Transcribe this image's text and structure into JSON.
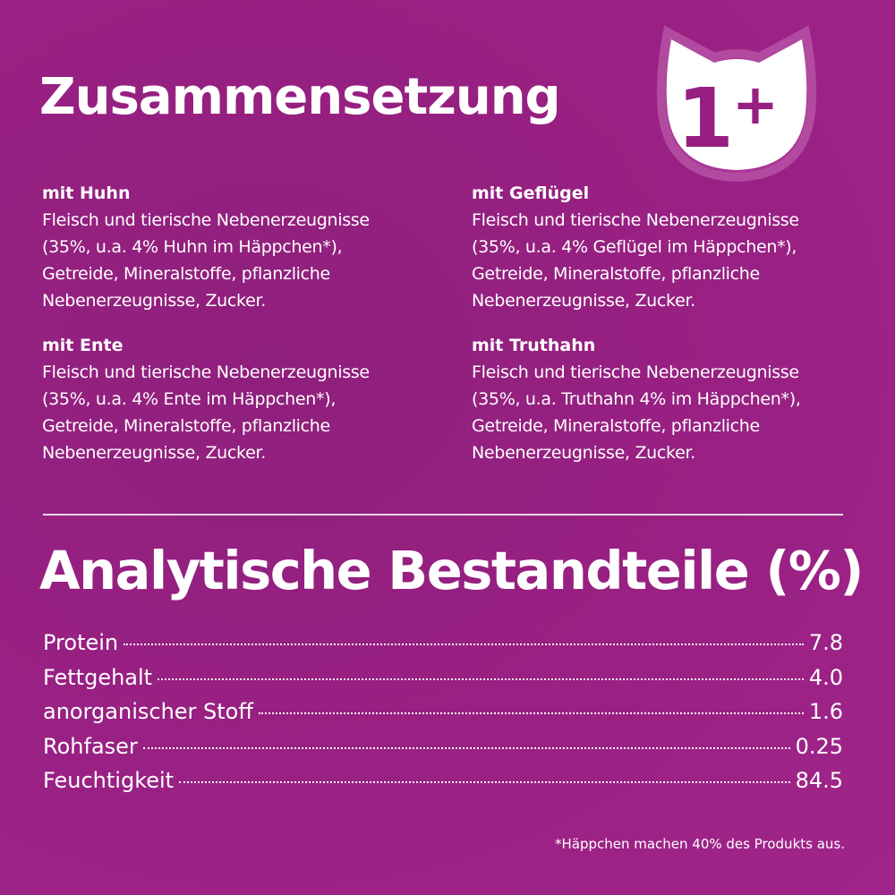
{
  "composition": {
    "title": "Zusammensetzung",
    "sections": [
      {
        "title": "mit Huhn",
        "body": "Fleisch und tierische Nebenerzeugnisse\n(35%, u.a. 4% Huhn im Häppchen*),\nGetreide, Mineralstoffe, pflanzliche\nNebenerzeugnisse, Zucker."
      },
      {
        "title": "mit Geflügel",
        "body": "Fleisch und tierische Nebenerzeugnisse\n(35%, u.a. 4% Geflügel im Häppchen*),\nGetreide, Mineralstoffe, pflanzliche\nNebenerzeugnisse, Zucker."
      },
      {
        "title": "mit Ente",
        "body": "Fleisch und tierische Nebenerzeugnisse\n(35%, u.a. 4% Ente im Häppchen*),\nGetreide, Mineralstoffe, pflanzliche\nNebenerzeugnisse, Zucker."
      },
      {
        "title": "mit Truthahn",
        "body": "Fleisch und tierische Nebenerzeugnisse\n(35%, u.a. Truthahn 4% im Häppchen*),\nGetreide, Mineralstoffe, pflanzliche\nNebenerzeugnisse, Zucker."
      }
    ]
  },
  "badge": {
    "text": "1+",
    "icon": "cat-head-icon"
  },
  "analysis": {
    "title": "Analytische Bestandteile (%)",
    "rows": [
      {
        "label": "Protein",
        "value": "7.8"
      },
      {
        "label": "Fettgehalt",
        "value": "4.0"
      },
      {
        "label": "anorganischer Stoff",
        "value": "1.6"
      },
      {
        "label": "Rohfaser",
        "value": "0.25"
      },
      {
        "label": "Feuchtigkeit",
        "value": "84.5"
      }
    ]
  },
  "footnote": "*Häppchen machen 40% des Produkts aus.",
  "colors": {
    "background": "#961f81",
    "text": "#ffffff"
  }
}
